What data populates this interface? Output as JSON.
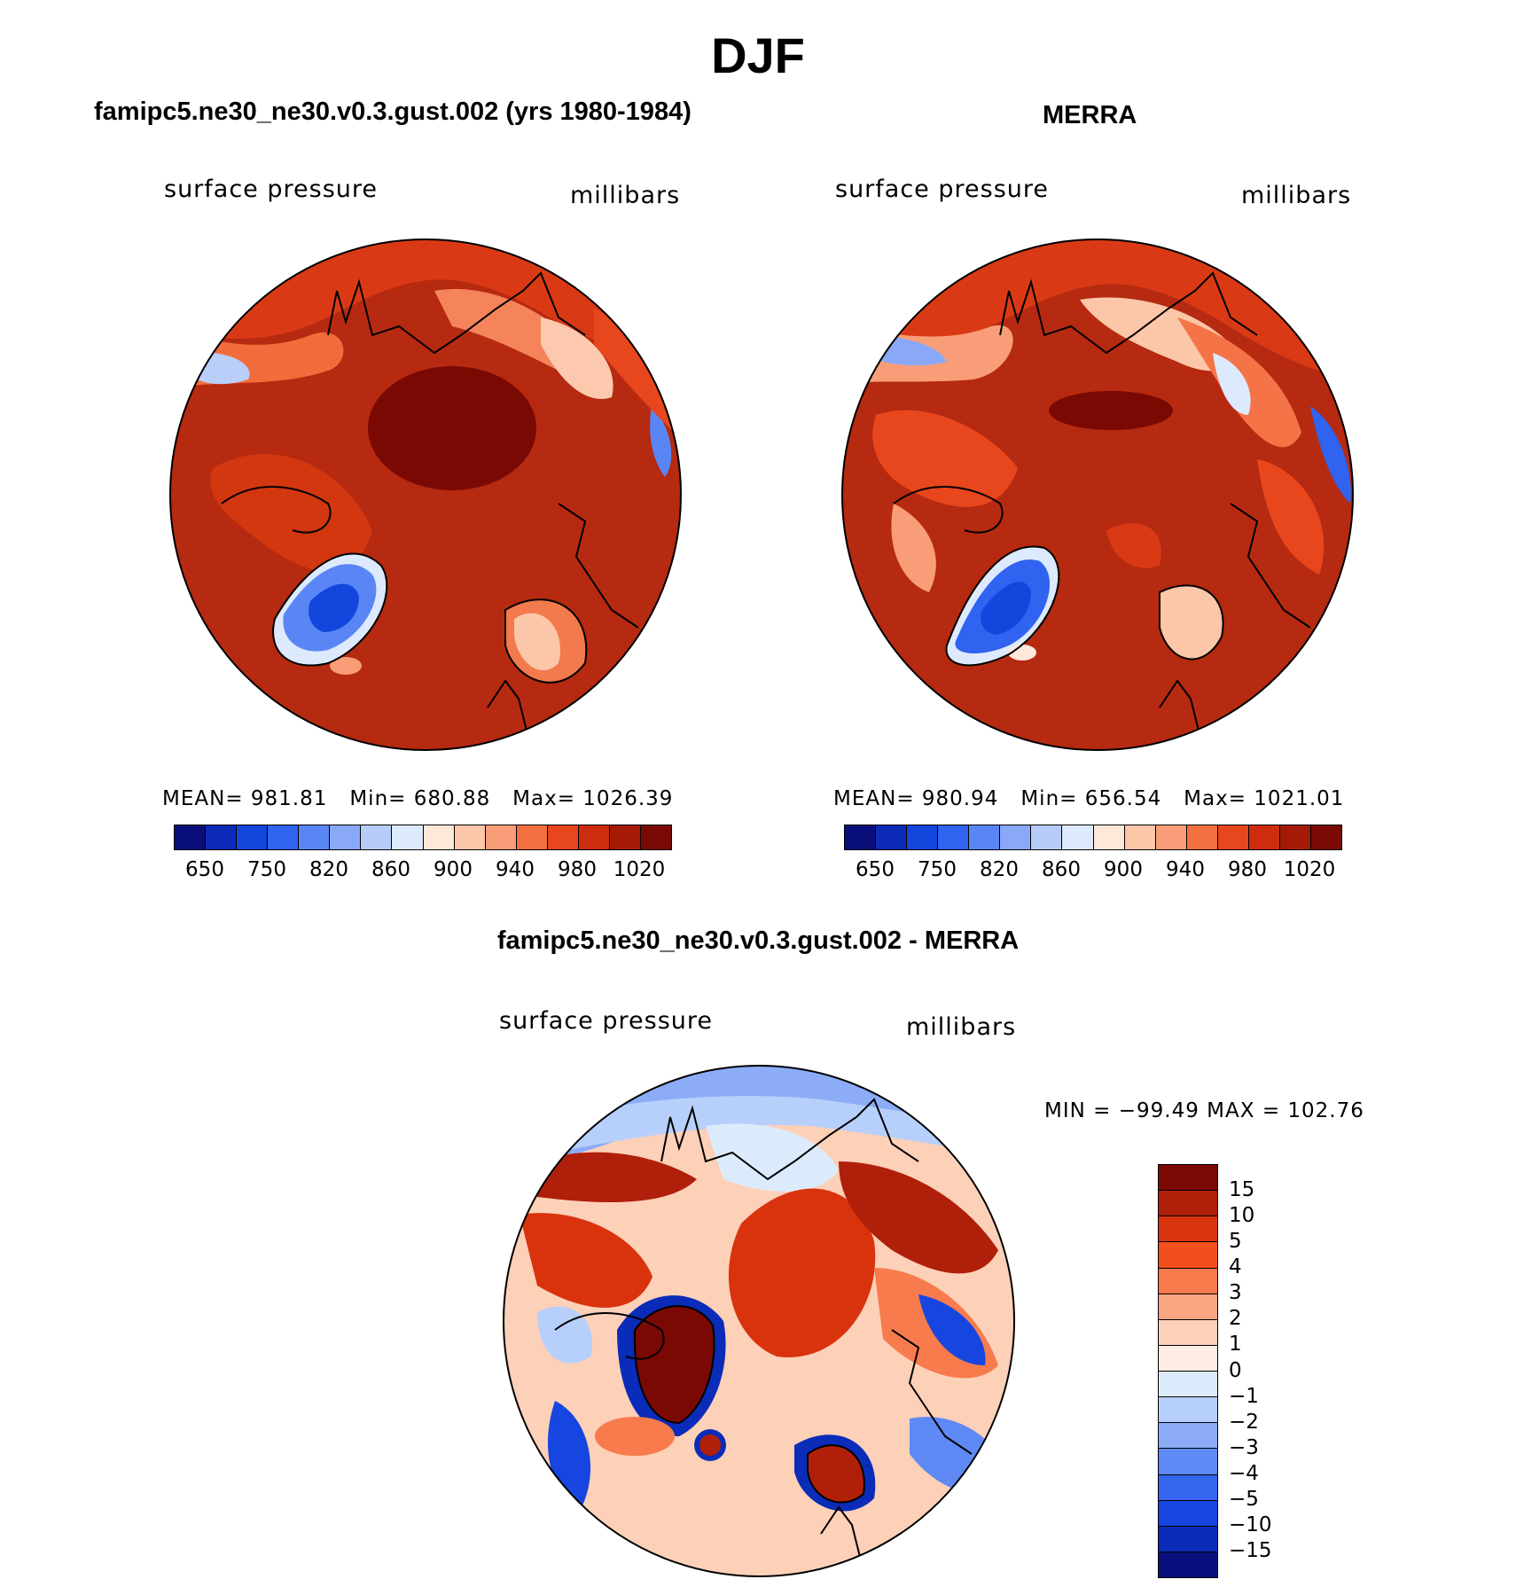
{
  "title": "DJF",
  "colors": {
    "ocean_warm": "#B52A10",
    "land_hot": "#E03A15",
    "high_pressure": "#8B0000",
    "coast_line": "#000000",
    "greenland_blue": "#2457D9"
  },
  "panels": [
    {
      "id": "model",
      "title": "famipc5.ne30_ne30.v0.3.gust.002 (yrs 1980-1984)",
      "variable": "surface pressure",
      "units": "millibars",
      "stats": {
        "mean_label": "MEAN=",
        "mean": "981.81",
        "min_label": "Min=",
        "min": "680.88",
        "max_label": "Max=",
        "max": "1026.39"
      },
      "colorbar": {
        "colors": [
          "#0a0e7a",
          "#0b2bb8",
          "#1246dc",
          "#2f63f0",
          "#5a86f5",
          "#89a9f8",
          "#b7ccfb",
          "#dde9fd",
          "#fde8da",
          "#fcc6a9",
          "#f89d78",
          "#f2703f",
          "#e8461d",
          "#cd2d0d",
          "#a51a05",
          "#7a0904"
        ],
        "labels": [
          "650",
          "750",
          "820",
          "860",
          "900",
          "940",
          "980",
          "1020"
        ]
      }
    },
    {
      "id": "obs",
      "title": "MERRA",
      "variable": "surface pressure",
      "units": "millibars",
      "stats": {
        "mean_label": "MEAN=",
        "mean": "980.94",
        "min_label": "Min=",
        "min": "656.54",
        "max_label": "Max=",
        "max": "1021.01"
      },
      "colorbar": {
        "colors": [
          "#0a0e7a",
          "#0b2bb8",
          "#1246dc",
          "#2f63f0",
          "#5a86f5",
          "#89a9f8",
          "#b7ccfb",
          "#dde9fd",
          "#fde8da",
          "#fcc6a9",
          "#f89d78",
          "#f2703f",
          "#e8461d",
          "#cd2d0d",
          "#a51a05",
          "#7a0904"
        ],
        "labels": [
          "650",
          "750",
          "820",
          "860",
          "900",
          "940",
          "980",
          "1020"
        ]
      }
    },
    {
      "id": "diff",
      "title": "famipc5.ne30_ne30.v0.3.gust.002 - MERRA",
      "variable": "surface pressure",
      "units": "millibars",
      "stats": {
        "min_label": "MIN =",
        "min": "−99.49",
        "max_label": "MAX =",
        "max": "102.76"
      },
      "colorbar": {
        "colors": [
          "#7a0904",
          "#b01f0a",
          "#d9330e",
          "#f24f1c",
          "#f77b4c",
          "#fba583",
          "#fdd0b8",
          "#fdece1",
          "#dcebfc",
          "#b7cffb",
          "#8cacf8",
          "#5f89f4",
          "#3566ee",
          "#1646df",
          "#0a2cb9",
          "#080f7d"
        ],
        "labels": [
          "15",
          "10",
          "5",
          "4",
          "3",
          "2",
          "1",
          "0",
          "−1",
          "−2",
          "−3",
          "−4",
          "−5",
          "−10",
          "−15"
        ]
      }
    }
  ]
}
